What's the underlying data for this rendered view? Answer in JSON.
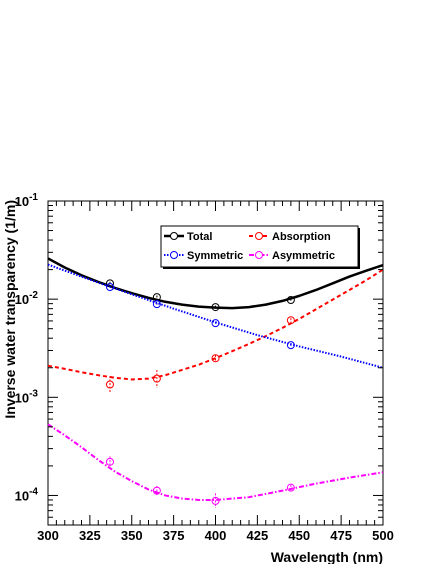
{
  "chart_data": {
    "type": "scatter",
    "title": "",
    "xlabel": "Wavelength (nm)",
    "ylabel": "Inverse water transparency (1/m)",
    "xlim": [
      300,
      500
    ],
    "ylim": [
      5e-05,
      0.1
    ],
    "yscale": "log",
    "grid": false,
    "legend_position": "top-center",
    "x_ticks": [
      "300",
      "325",
      "350",
      "375",
      "400",
      "425",
      "450",
      "475",
      "500"
    ],
    "y_ticks": [
      {
        "base": "10",
        "exp": "-1",
        "value": 0.1
      },
      {
        "base": "10",
        "exp": "-2",
        "value": 0.01
      },
      {
        "base": "10",
        "exp": "-3",
        "value": 0.001
      },
      {
        "base": "10",
        "exp": "-4",
        "value": 0.0001
      }
    ],
    "series": [
      {
        "name": "Total",
        "color": "#000000",
        "line_style": "solid",
        "points": [
          {
            "x": 337,
            "y": 0.0145,
            "lo": 0.014,
            "hi": 0.015
          },
          {
            "x": 365,
            "y": 0.0105,
            "lo": 0.0101,
            "hi": 0.0109
          },
          {
            "x": 400,
            "y": 0.0083,
            "lo": 0.008,
            "hi": 0.0086
          },
          {
            "x": 445,
            "y": 0.0098,
            "lo": 0.0095,
            "hi": 0.0101
          }
        ],
        "curve": [
          [
            300,
            0.026
          ],
          [
            310,
            0.021
          ],
          [
            320,
            0.0175
          ],
          [
            330,
            0.015
          ],
          [
            340,
            0.013
          ],
          [
            350,
            0.0115
          ],
          [
            360,
            0.0103
          ],
          [
            370,
            0.0094
          ],
          [
            380,
            0.0088
          ],
          [
            390,
            0.0084
          ],
          [
            400,
            0.0082
          ],
          [
            410,
            0.0081
          ],
          [
            420,
            0.0083
          ],
          [
            430,
            0.0088
          ],
          [
            440,
            0.0096
          ],
          [
            450,
            0.0108
          ],
          [
            460,
            0.0124
          ],
          [
            470,
            0.0145
          ],
          [
            480,
            0.017
          ],
          [
            490,
            0.0195
          ],
          [
            500,
            0.0222
          ]
        ]
      },
      {
        "name": "Absorption",
        "color": "#ff0000",
        "line_style": "dashed",
        "points": [
          {
            "x": 337,
            "y": 0.00135,
            "lo": 0.0011,
            "hi": 0.00165
          },
          {
            "x": 365,
            "y": 0.00155,
            "lo": 0.00125,
            "hi": 0.0019
          },
          {
            "x": 400,
            "y": 0.0025,
            "lo": 0.0023,
            "hi": 0.0027
          },
          {
            "x": 445,
            "y": 0.0061,
            "lo": 0.0058,
            "hi": 0.0064
          }
        ],
        "curve": [
          [
            300,
            0.0021
          ],
          [
            310,
            0.00195
          ],
          [
            320,
            0.0018
          ],
          [
            330,
            0.00168
          ],
          [
            340,
            0.00158
          ],
          [
            350,
            0.00152
          ],
          [
            360,
            0.00155
          ],
          [
            370,
            0.00168
          ],
          [
            380,
            0.0019
          ],
          [
            390,
            0.00215
          ],
          [
            400,
            0.0025
          ],
          [
            410,
            0.00295
          ],
          [
            420,
            0.0035
          ],
          [
            430,
            0.0042
          ],
          [
            440,
            0.0051
          ],
          [
            450,
            0.0063
          ],
          [
            460,
            0.0079
          ],
          [
            470,
            0.0099
          ],
          [
            480,
            0.0124
          ],
          [
            490,
            0.0156
          ],
          [
            500,
            0.02
          ]
        ]
      },
      {
        "name": "Symmetric",
        "color": "#0000ff",
        "line_style": "dotted",
        "points": [
          {
            "x": 337,
            "y": 0.0133,
            "lo": 0.0129,
            "hi": 0.0137
          },
          {
            "x": 365,
            "y": 0.0089,
            "lo": 0.0086,
            "hi": 0.0092
          },
          {
            "x": 400,
            "y": 0.0057,
            "lo": 0.0055,
            "hi": 0.0059
          },
          {
            "x": 445,
            "y": 0.0034,
            "lo": 0.0033,
            "hi": 0.0035
          }
        ],
        "curve": [
          [
            300,
            0.0225
          ],
          [
            325,
            0.0158
          ],
          [
            350,
            0.0112
          ],
          [
            375,
            0.008
          ],
          [
            400,
            0.0058
          ],
          [
            425,
            0.0043
          ],
          [
            450,
            0.0033
          ],
          [
            475,
            0.0026
          ],
          [
            500,
            0.002
          ]
        ]
      },
      {
        "name": "Asymmetric",
        "color": "#ff00ff",
        "line_style": "dashdot",
        "points": [
          {
            "x": 337,
            "y": 0.00022,
            "lo": 0.00019,
            "hi": 0.00025
          },
          {
            "x": 365,
            "y": 0.000112,
            "lo": 0.0001,
            "hi": 0.000125
          },
          {
            "x": 400,
            "y": 8.8e-05,
            "lo": 7.5e-05,
            "hi": 0.000105
          },
          {
            "x": 445,
            "y": 0.00012,
            "lo": 0.000112,
            "hi": 0.000128
          }
        ],
        "curve": [
          [
            300,
            0.00053
          ],
          [
            310,
            0.00041
          ],
          [
            320,
            0.00031
          ],
          [
            330,
            0.00023
          ],
          [
            340,
            0.000175
          ],
          [
            350,
            0.00014
          ],
          [
            360,
            0.000115
          ],
          [
            370,
            0.0001
          ],
          [
            380,
            9.3e-05
          ],
          [
            390,
            9e-05
          ],
          [
            400,
            9e-05
          ],
          [
            420,
            9.6e-05
          ],
          [
            440,
            0.000112
          ],
          [
            460,
            0.000132
          ],
          [
            480,
            0.000152
          ],
          [
            500,
            0.000172
          ]
        ]
      }
    ],
    "legend": [
      {
        "label": "Total",
        "color": "#000000",
        "line_style": "solid"
      },
      {
        "label": "Absorption",
        "color": "#ff0000",
        "line_style": "dashed"
      },
      {
        "label": "Symmetric",
        "color": "#0000ff",
        "line_style": "dotted"
      },
      {
        "label": "Asymmetric",
        "color": "#ff00ff",
        "line_style": "dashdot"
      }
    ]
  }
}
